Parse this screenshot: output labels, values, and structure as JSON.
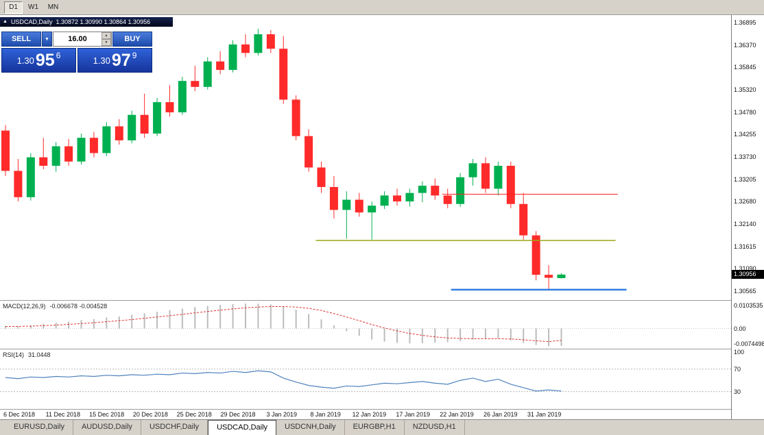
{
  "toolbar": {
    "buttons": [
      {
        "label": "D1",
        "active": true
      },
      {
        "label": "W1",
        "active": false
      },
      {
        "label": "MN",
        "active": false
      }
    ]
  },
  "title_bar": {
    "icon": "▲",
    "symbol": "USDCAD,Daily",
    "ohlc": "1.30872 1.30990 1.30864 1.30956"
  },
  "one_click": {
    "sell_label": "SELL",
    "buy_label": "BUY",
    "volume": "16.00",
    "dropdown_icon": "▼",
    "spin_up_icon": "▲",
    "spin_down_icon": "▼",
    "sell_price": {
      "prefix": "1.30",
      "big": "95",
      "sup": "6"
    },
    "buy_price": {
      "prefix": "1.30",
      "big": "97",
      "sup": "9"
    }
  },
  "macd_panel": {
    "title": "MACD(12,26,9)",
    "values": "-0.006678 -0.004528",
    "axis_labels": [
      "0.0103535",
      "0.00",
      "-0.0074498"
    ]
  },
  "rsi_panel": {
    "title": "RSI(14)",
    "value": "31.0448",
    "axis_labels": [
      "100",
      "70",
      "30"
    ]
  },
  "tabs": [
    {
      "label": "EURUSD,Daily",
      "active": false
    },
    {
      "label": "AUDUSD,Daily",
      "active": false
    },
    {
      "label": "USDCHF,Daily",
      "active": false
    },
    {
      "label": "USDCAD,Daily",
      "active": true
    },
    {
      "label": "USDCNH,Daily",
      "active": false
    },
    {
      "label": "EURGBP,H1",
      "active": false
    },
    {
      "label": "NZDUSD,H1",
      "active": false
    }
  ],
  "colors": {
    "bull": "#00b050",
    "bear": "#ff2a2a",
    "macd_hist": "#bcbcbc",
    "macd_signal": "#e03030",
    "rsi_line": "#4f81bd",
    "level_line": "#b8b8b8",
    "tag_bg": "#000000",
    "tag_text": "#ffffff"
  },
  "chart_data": {
    "type": "candlestick",
    "symbol": "USDCAD",
    "timeframe": "Daily",
    "current_ohlc": {
      "open": 1.30872,
      "high": 1.3099,
      "low": 1.30864,
      "close": 1.30956
    },
    "y_axis_range": [
      1.30355,
      1.37073
    ],
    "y_tick_labels": [
      "1.36895",
      "1.36370",
      "1.35845",
      "1.35320",
      "1.34780",
      "1.34255",
      "1.33730",
      "1.33205",
      "1.32680",
      "1.32140",
      "1.31615",
      "1.31090",
      "1.30565"
    ],
    "x_tick_labels": [
      "6 Dec 2018",
      "11 Dec 2018",
      "15 Dec 2018",
      "20 Dec 2018",
      "25 Dec 2018",
      "29 Dec 2018",
      "3 Jan 2019",
      "8 Jan 2019",
      "12 Jan 2019",
      "17 Jan 2019",
      "22 Jan 2019",
      "26 Jan 2019",
      "31 Jan 2019"
    ],
    "current_price_tag": "1.30956",
    "candles": [
      [
        1.3435,
        1.3448,
        1.3328,
        1.334
      ],
      [
        1.334,
        1.3368,
        1.3268,
        1.3278
      ],
      [
        1.3278,
        1.3382,
        1.327,
        1.3372
      ],
      [
        1.3372,
        1.3418,
        1.3344,
        1.3352
      ],
      [
        1.3352,
        1.3408,
        1.3338,
        1.3398
      ],
      [
        1.3398,
        1.3415,
        1.3352,
        1.3362
      ],
      [
        1.3362,
        1.3428,
        1.3355,
        1.3418
      ],
      [
        1.3418,
        1.3432,
        1.3372,
        1.3382
      ],
      [
        1.3382,
        1.3455,
        1.3375,
        1.3445
      ],
      [
        1.3445,
        1.3462,
        1.3402,
        1.3412
      ],
      [
        1.3412,
        1.3482,
        1.3405,
        1.3472
      ],
      [
        1.3472,
        1.3522,
        1.3418,
        1.3428
      ],
      [
        1.3428,
        1.3512,
        1.3422,
        1.3502
      ],
      [
        1.3502,
        1.3542,
        1.3468,
        1.3478
      ],
      [
        1.3478,
        1.3562,
        1.3472,
        1.3552
      ],
      [
        1.3552,
        1.3588,
        1.3528,
        1.3538
      ],
      [
        1.3538,
        1.3608,
        1.3532,
        1.3598
      ],
      [
        1.3598,
        1.3622,
        1.3568,
        1.3578
      ],
      [
        1.3578,
        1.3648,
        1.3572,
        1.3638
      ],
      [
        1.3638,
        1.3662,
        1.3608,
        1.3618
      ],
      [
        1.3618,
        1.3675,
        1.3612,
        1.3662
      ],
      [
        1.3662,
        1.3672,
        1.3618,
        1.3628
      ],
      [
        1.3628,
        1.3658,
        1.3498,
        1.3508
      ],
      [
        1.3508,
        1.3518,
        1.3412,
        1.3422
      ],
      [
        1.3422,
        1.3438,
        1.3338,
        1.3348
      ],
      [
        1.3348,
        1.3362,
        1.3288,
        1.3302
      ],
      [
        1.3302,
        1.3328,
        1.3228,
        1.3248
      ],
      [
        1.3248,
        1.3292,
        1.318,
        1.3272
      ],
      [
        1.3272,
        1.3288,
        1.3232,
        1.3242
      ],
      [
        1.3242,
        1.3268,
        1.3178,
        1.3258
      ],
      [
        1.3258,
        1.3292,
        1.325,
        1.3282
      ],
      [
        1.3282,
        1.3298,
        1.3258,
        1.3268
      ],
      [
        1.3268,
        1.3298,
        1.3256,
        1.3288
      ],
      [
        1.3288,
        1.3315,
        1.3266,
        1.3305
      ],
      [
        1.3305,
        1.3322,
        1.3272,
        1.3282
      ],
      [
        1.3282,
        1.3298,
        1.3252,
        1.3262
      ],
      [
        1.3262,
        1.3335,
        1.3255,
        1.3325
      ],
      [
        1.3325,
        1.3368,
        1.3305,
        1.3358
      ],
      [
        1.3358,
        1.3372,
        1.3288,
        1.3298
      ],
      [
        1.3298,
        1.3362,
        1.3282,
        1.3352
      ],
      [
        1.3352,
        1.3362,
        1.3252,
        1.3262
      ],
      [
        1.3262,
        1.3288,
        1.3178,
        1.3188
      ],
      [
        1.3188,
        1.3198,
        1.3082,
        1.3095
      ],
      [
        1.3095,
        1.3118,
        1.3058,
        1.3088
      ],
      [
        1.30872,
        1.3099,
        1.30864,
        1.30956
      ]
    ],
    "hlines": [
      {
        "price": 1.3285,
        "color": "#ff2020",
        "width": 1,
        "x1": 0.605,
        "x2": 0.845
      },
      {
        "price": 1.3176,
        "color": "#9aa616",
        "width": 1.5,
        "x1": 0.432,
        "x2": 0.842
      },
      {
        "price": 1.306,
        "color": "#2f7de1",
        "width": 2.5,
        "x1": 0.617,
        "x2": 0.857
      }
    ],
    "macd": {
      "range": [
        -0.0074498,
        0.0103535
      ],
      "histogram": [
        0.001,
        0.0008,
        0.0012,
        0.0018,
        0.0022,
        0.0026,
        0.0032,
        0.0036,
        0.0042,
        0.0046,
        0.0052,
        0.0058,
        0.0064,
        0.007,
        0.0076,
        0.0082,
        0.0086,
        0.009,
        0.0093,
        0.0095,
        0.0095,
        0.0092,
        0.0085,
        0.0072,
        0.0055,
        0.0035,
        0.0012,
        -0.001,
        -0.0028,
        -0.0042,
        -0.005,
        -0.0055,
        -0.0057,
        -0.0056,
        -0.0054,
        -0.0052,
        -0.0048,
        -0.0042,
        -0.004,
        -0.0038,
        -0.0045,
        -0.0055,
        -0.0063,
        -0.0068,
        -0.006678
      ],
      "signal": [
        0.0008,
        0.0008,
        0.0009,
        0.0011,
        0.0013,
        0.0016,
        0.0019,
        0.0022,
        0.0026,
        0.003,
        0.0034,
        0.0039,
        0.0044,
        0.0049,
        0.0054,
        0.006,
        0.0065,
        0.007,
        0.0075,
        0.0079,
        0.0082,
        0.0084,
        0.0084,
        0.0082,
        0.0077,
        0.0069,
        0.0057,
        0.0044,
        0.003,
        0.0015,
        0.0002,
        -0.0009,
        -0.0019,
        -0.0026,
        -0.0032,
        -0.0036,
        -0.0038,
        -0.0039,
        -0.0039,
        -0.0039,
        -0.004,
        -0.0043,
        -0.0047,
        -0.005,
        -0.004528
      ]
    },
    "rsi": {
      "range": [
        0,
        100
      ],
      "levels": [
        70,
        30
      ],
      "values": [
        55,
        53,
        56,
        55,
        57,
        56,
        58,
        57,
        59,
        58,
        60,
        59,
        61,
        60,
        63,
        62,
        64,
        63,
        66,
        64,
        67,
        65,
        54,
        47,
        41,
        38,
        36,
        40,
        39,
        42,
        45,
        44,
        46,
        48,
        45,
        43,
        50,
        54,
        48,
        52,
        43,
        37,
        31,
        33,
        31.0448
      ]
    }
  }
}
